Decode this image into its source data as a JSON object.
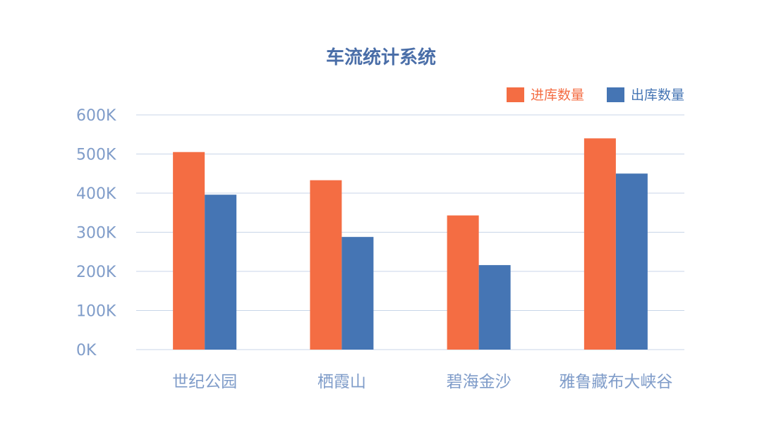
{
  "chart_data": {
    "type": "bar",
    "title": "车流统计系统",
    "categories": [
      "世纪公园",
      "栖霞山",
      "碧海金沙",
      "雅鲁藏布大峡谷"
    ],
    "series": [
      {
        "name": "进库数量",
        "color": "#f46d43",
        "values": [
          505000,
          433000,
          343000,
          540000
        ]
      },
      {
        "name": "出库数量",
        "color": "#4575b4",
        "values": [
          396000,
          288000,
          216000,
          450000
        ]
      }
    ],
    "ylim": [
      0,
      600000
    ],
    "yticks": [
      {
        "value": 0,
        "label": "0K"
      },
      {
        "value": 100000,
        "label": "100K"
      },
      {
        "value": 200000,
        "label": "200K"
      },
      {
        "value": 300000,
        "label": "300K"
      },
      {
        "value": 400000,
        "label": "400K"
      },
      {
        "value": 500000,
        "label": "500K"
      },
      {
        "value": 600000,
        "label": "600K"
      }
    ],
    "grid": true,
    "legend_position": "top-right",
    "colors": {
      "title": "#4a6ea8",
      "axis_text": "#7f9cc9",
      "grid": "#c8d6e8"
    }
  }
}
